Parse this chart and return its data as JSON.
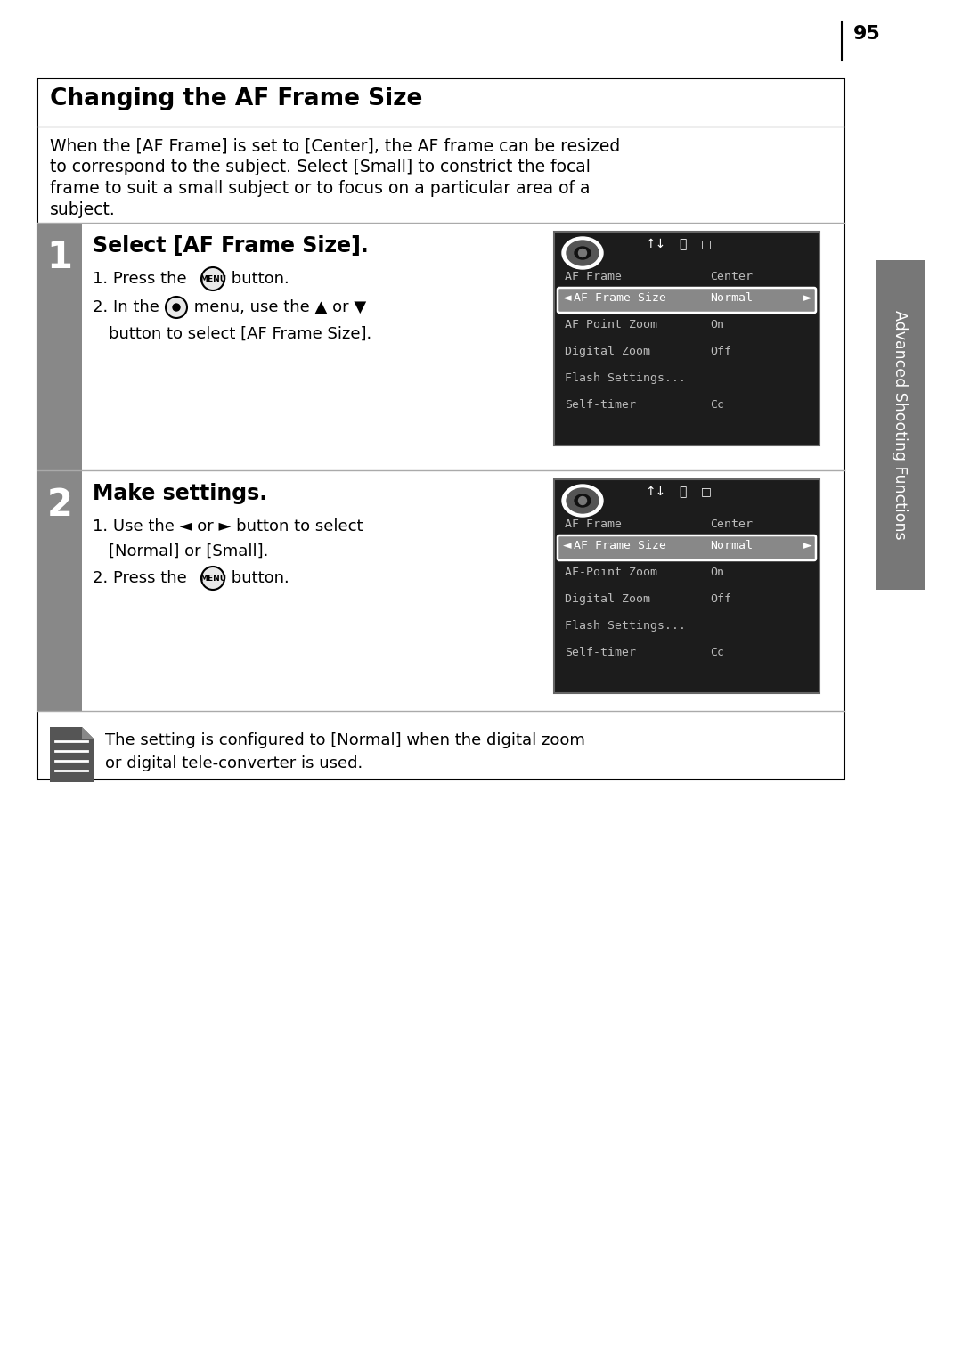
{
  "page_number": "95",
  "bg_color": "#ffffff",
  "title": "Changing the AF Frame Size",
  "intro_text": "When the [AF Frame] is set to [Center], the AF frame can be resized\nto correspond to the subject. Select [Small] to constrict the focal\nframe to suit a small subject or to focus on a particular area of a\nsubject.",
  "step1_number": "1",
  "step1_title": "Select [AF Frame Size].",
  "step2_number": "2",
  "step2_title": "Make settings.",
  "note_text": "The setting is configured to [Normal] when the digital zoom\nor digital tele-converter is used.",
  "screen1_menu_items": [
    "AF Frame",
    "AF Frame Size",
    "AF Point Zoom",
    "Digital Zoom",
    "Flash Settings...",
    "Self-timer"
  ],
  "screen1_values": [
    "Center",
    "Normal",
    "On",
    "Off",
    "",
    "Cc"
  ],
  "screen1_highlight": 1,
  "screen2_menu_items": [
    "AF Frame",
    "AF Frame Size",
    "AF-Point Zoom",
    "Digital Zoom",
    "Flash Settings...",
    "Self-timer"
  ],
  "screen2_values": [
    "Center",
    "Normal",
    "On",
    "Off",
    "",
    "Cc"
  ],
  "screen2_highlight": 1,
  "sidebar_text": "Advanced Shooting Functions",
  "sidebar_color": "#777777"
}
